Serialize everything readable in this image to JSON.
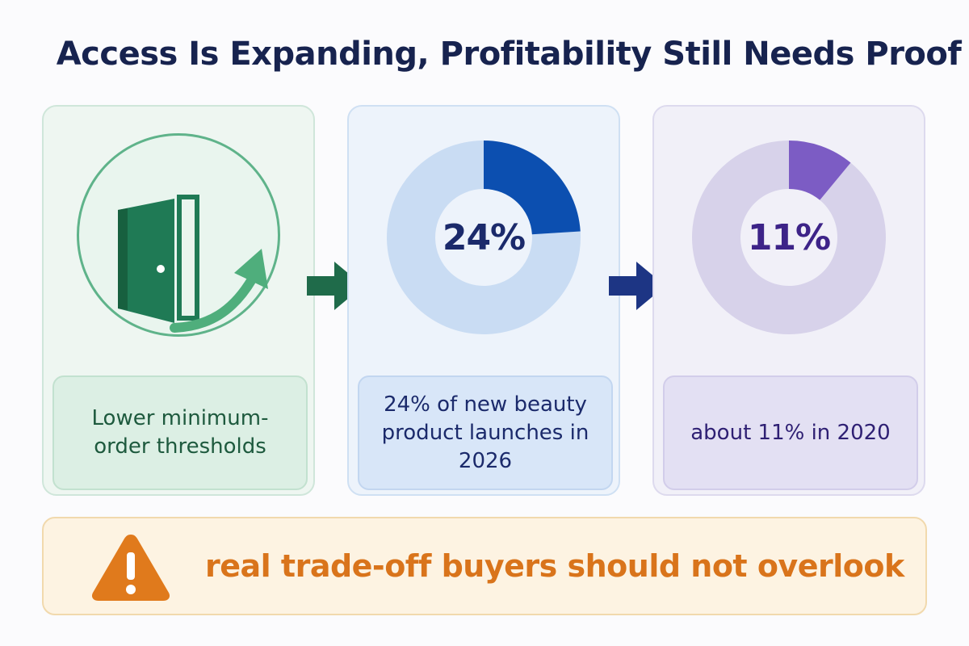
{
  "title": "Access Is Expanding, Profitability Still Needs Proof",
  "panels": [
    {
      "icon": "door-arrow-icon",
      "caption": "Lower minimum-order thresholds",
      "accent": "#1f7a55"
    },
    {
      "value_label": "24%",
      "share": 0.24,
      "caption": "24% of new beauty product launches in 2026",
      "accent": "#0c4fb0",
      "track": "#c9dcf3"
    },
    {
      "value_label": "11%",
      "share": 0.11,
      "caption": "about 11% in 2020",
      "accent": "#7c5cc4",
      "track": "#d7d2ea"
    }
  ],
  "arrows": [
    {
      "icon": "right-arrow-icon",
      "color": "#1f6b4a"
    },
    {
      "icon": "right-arrow-icon",
      "color": "#1d3584"
    }
  ],
  "warning": {
    "icon": "warning-triangle-icon",
    "text": "real trade-off buyers should not overlook",
    "color": "#d9741b"
  }
}
